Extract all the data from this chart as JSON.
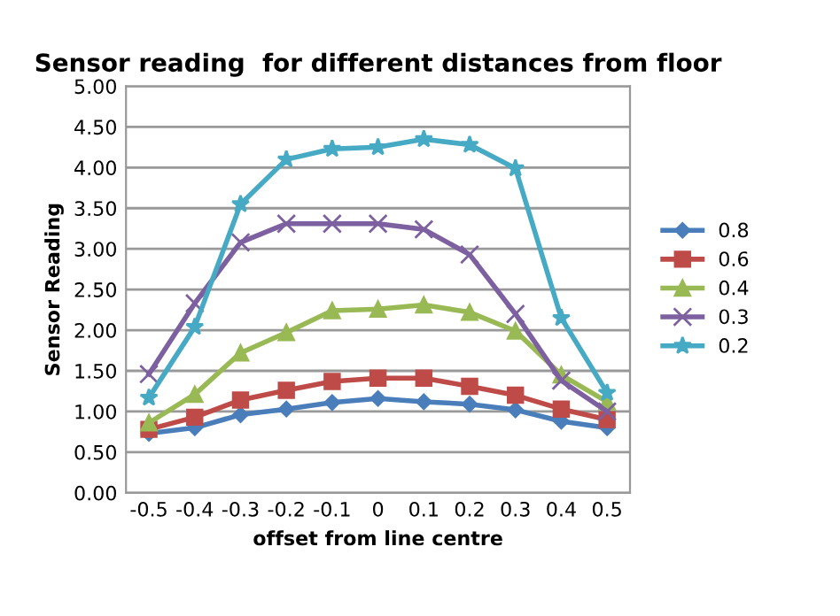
{
  "chart_data": {
    "type": "line",
    "title": "Sensor reading  for different distances from floor",
    "xlabel": "offset from line centre",
    "ylabel": "Sensor Reading",
    "categories": [
      "-0.5",
      "-0.4",
      "-0.3",
      "-0.2",
      "-0.1",
      "0",
      "0.1",
      "0.2",
      "0.3",
      "0.4",
      "0.5"
    ],
    "series": [
      {
        "name": "0.8",
        "color": "#4a7ebb",
        "marker": "diamond",
        "values": [
          0.73,
          0.8,
          0.96,
          1.03,
          1.11,
          1.16,
          1.12,
          1.09,
          1.02,
          0.88,
          0.8
        ]
      },
      {
        "name": "0.6",
        "color": "#be4b48",
        "marker": "square",
        "values": [
          0.78,
          0.93,
          1.14,
          1.26,
          1.37,
          1.41,
          1.41,
          1.31,
          1.2,
          1.03,
          0.9
        ]
      },
      {
        "name": "0.4",
        "color": "#98b954",
        "marker": "triangle",
        "values": [
          0.86,
          1.21,
          1.72,
          1.97,
          2.24,
          2.26,
          2.31,
          2.22,
          1.99,
          1.45,
          1.12
        ]
      },
      {
        "name": "0.3",
        "color": "#7d60a0",
        "marker": "cross",
        "values": [
          1.46,
          2.33,
          3.08,
          3.31,
          3.31,
          3.31,
          3.24,
          2.93,
          2.2,
          1.38,
          1.0
        ]
      },
      {
        "name": "0.2",
        "color": "#46aac5",
        "marker": "star",
        "values": [
          1.17,
          2.04,
          3.55,
          4.1,
          4.23,
          4.25,
          4.35,
          4.28,
          3.99,
          2.15,
          1.23
        ]
      }
    ],
    "ylim": [
      0,
      5
    ],
    "yticks": [
      {
        "value": 0,
        "label": "0.00"
      },
      {
        "value": 0.5,
        "label": "0.50"
      },
      {
        "value": 1,
        "label": "1.00"
      },
      {
        "value": 1.5,
        "label": "1.50"
      },
      {
        "value": 2,
        "label": "2.00"
      },
      {
        "value": 2.5,
        "label": "2.50"
      },
      {
        "value": 3,
        "label": "3.00"
      },
      {
        "value": 3.5,
        "label": "3.50"
      },
      {
        "value": 4,
        "label": "4.00"
      },
      {
        "value": 4.5,
        "label": "4.50"
      },
      {
        "value": 5,
        "label": "5.00"
      }
    ],
    "grid": "y",
    "legend": "right",
    "line_style": "solid"
  }
}
